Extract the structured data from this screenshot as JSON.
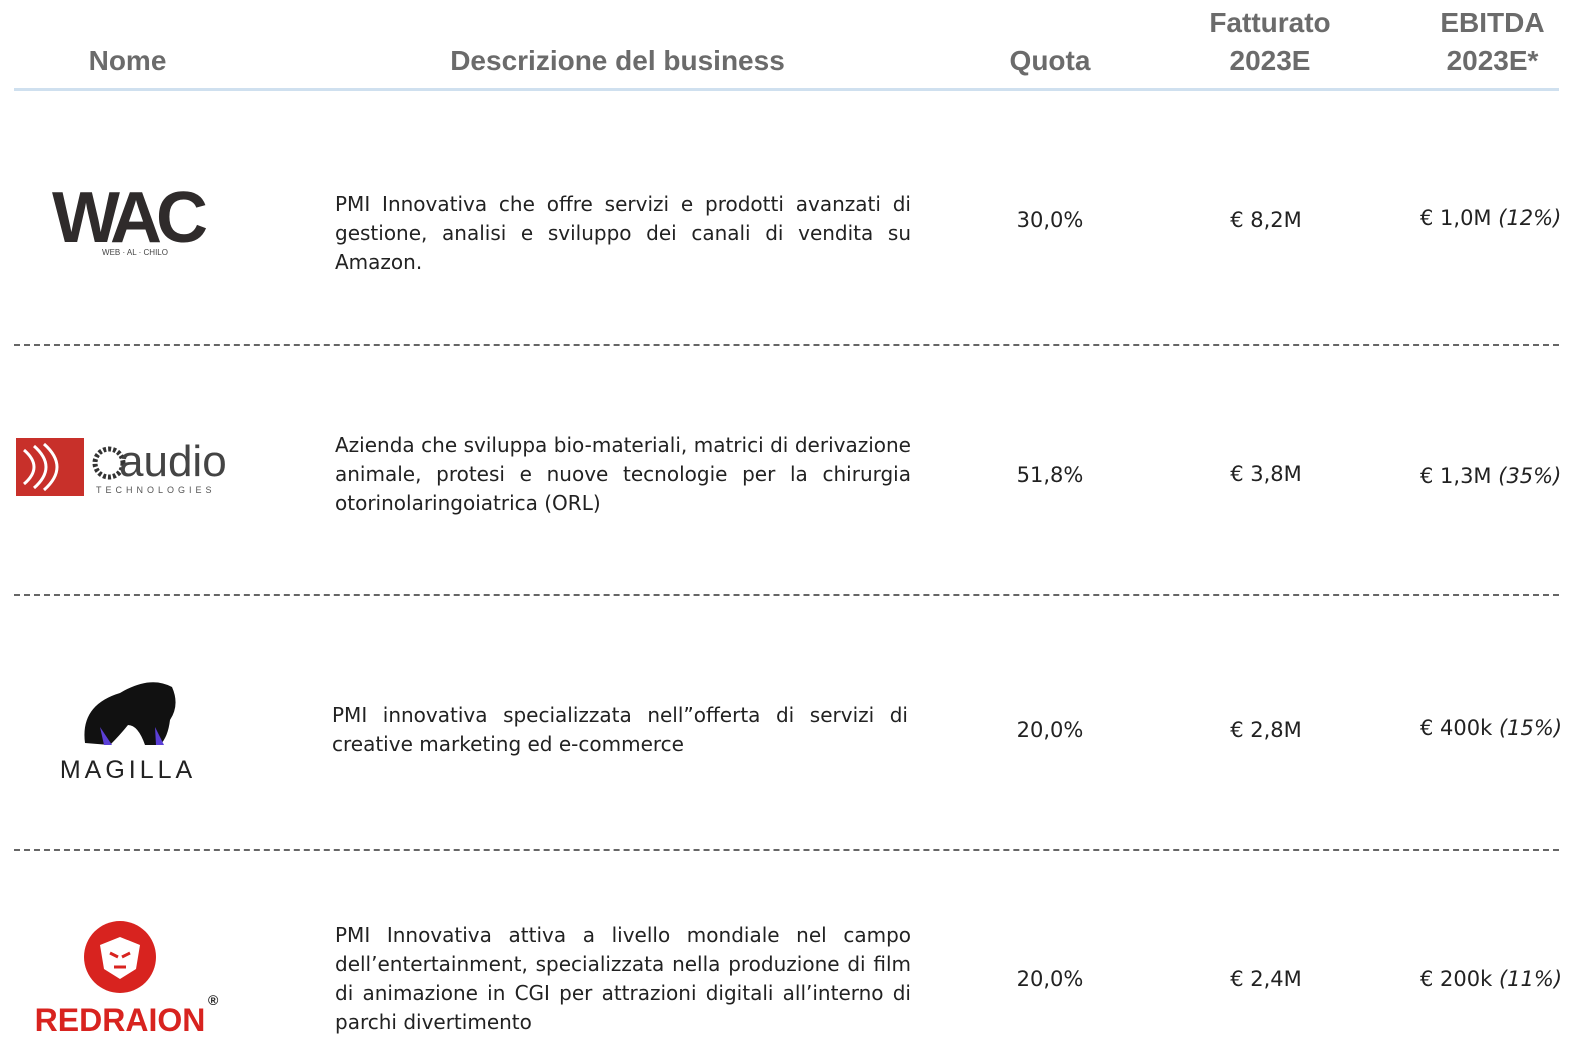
{
  "table": {
    "columns": [
      "Nome",
      "Descrizione del business",
      "Quota",
      "Fatturato 2023E",
      "EBITDA 2023E*"
    ],
    "rows": [
      {
        "logo": {
          "text": "WAC",
          "sub": "WEB · AL · CHILO"
        },
        "description": "PMI Innovativa che offre servizi e prodotti avanzati di gestione, analisi e sviluppo dei canali di vendita su Amazon.",
        "quota": "30,0%",
        "fatturato": "€ 8,2M",
        "ebitda": "€ 1,0M",
        "margin": "(12%)"
      },
      {
        "logo": {
          "text": "audio",
          "sub": "TECHNOLOGIES"
        },
        "description": "Azienda che sviluppa bio-materiali, matrici di derivazione animale, protesi e nuove tecnologie per la chirurgia otorinolaringoiatrica (ORL)",
        "quota": "51,8%",
        "fatturato": "€ 3,8M",
        "ebitda": "€ 1,3M",
        "margin": "(35%)"
      },
      {
        "logo": {
          "text": "MAGILLA"
        },
        "description": "PMI innovativa specializzata nell”offerta di servizi di creative marketing ed e-commerce",
        "quota": "20,0%",
        "fatturato": "€ 2,8M",
        "ebitda": "€ 400k",
        "margin": "(15%)"
      },
      {
        "logo": {
          "text": "REDRAION",
          "sub": "®"
        },
        "description": "PMI Innovativa attiva a livello mondiale nel campo dell’entertainment, specializzata nella produzione di film di animazione in CGI per attrazioni digitali all’interno di parchi divertimento",
        "quota": "20,0%",
        "fatturato": "€ 2,4M",
        "ebitda": "€ 200k",
        "margin": "(11%)"
      }
    ]
  }
}
